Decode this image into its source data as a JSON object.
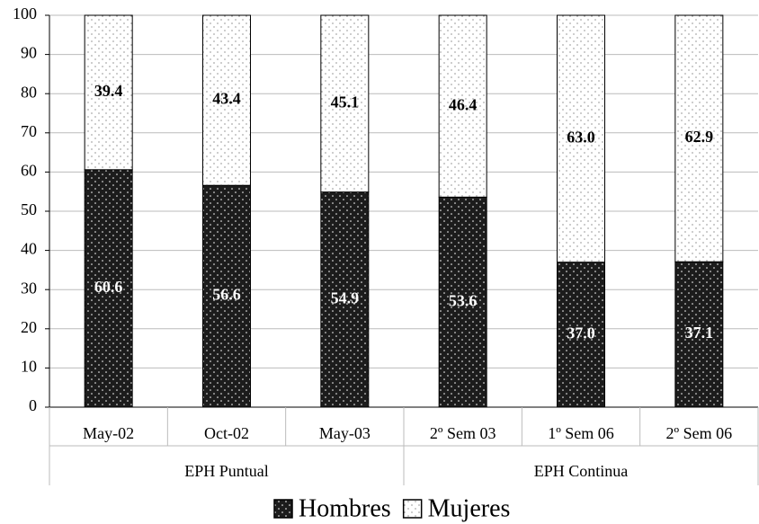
{
  "chart_data": {
    "type": "stacked-bar",
    "categories": [
      "May-02",
      "Oct-02",
      "May-03",
      "2º Sem 03",
      "1º Sem 06",
      "2º Sem 06"
    ],
    "groups": [
      {
        "label": "EPH Puntual",
        "categories": [
          "May-02",
          "Oct-02",
          "May-03"
        ]
      },
      {
        "label": "EPH Continua",
        "categories": [
          "2º Sem 03",
          "1º Sem 06",
          "2º Sem 06"
        ]
      }
    ],
    "series": [
      {
        "name": "Hombres",
        "color": "#1c1c1c",
        "values": [
          60.6,
          56.6,
          54.9,
          53.6,
          37.0,
          37.1
        ],
        "value_labels": [
          "60.6",
          "56.6",
          "54.9",
          "53.6",
          "37.0",
          "37.1"
        ]
      },
      {
        "name": "Mujeres",
        "color": "#ffffff",
        "values": [
          39.4,
          43.4,
          45.1,
          46.4,
          63.0,
          62.9
        ],
        "value_labels": [
          "39.4",
          "43.4",
          "45.1",
          "46.4",
          "63.0",
          "62.9"
        ]
      }
    ],
    "ylim": [
      0,
      100
    ],
    "yticks": [
      0,
      10,
      20,
      30,
      40,
      50,
      60,
      70,
      80,
      90,
      100
    ],
    "grid": true,
    "legend": "bottom"
  }
}
